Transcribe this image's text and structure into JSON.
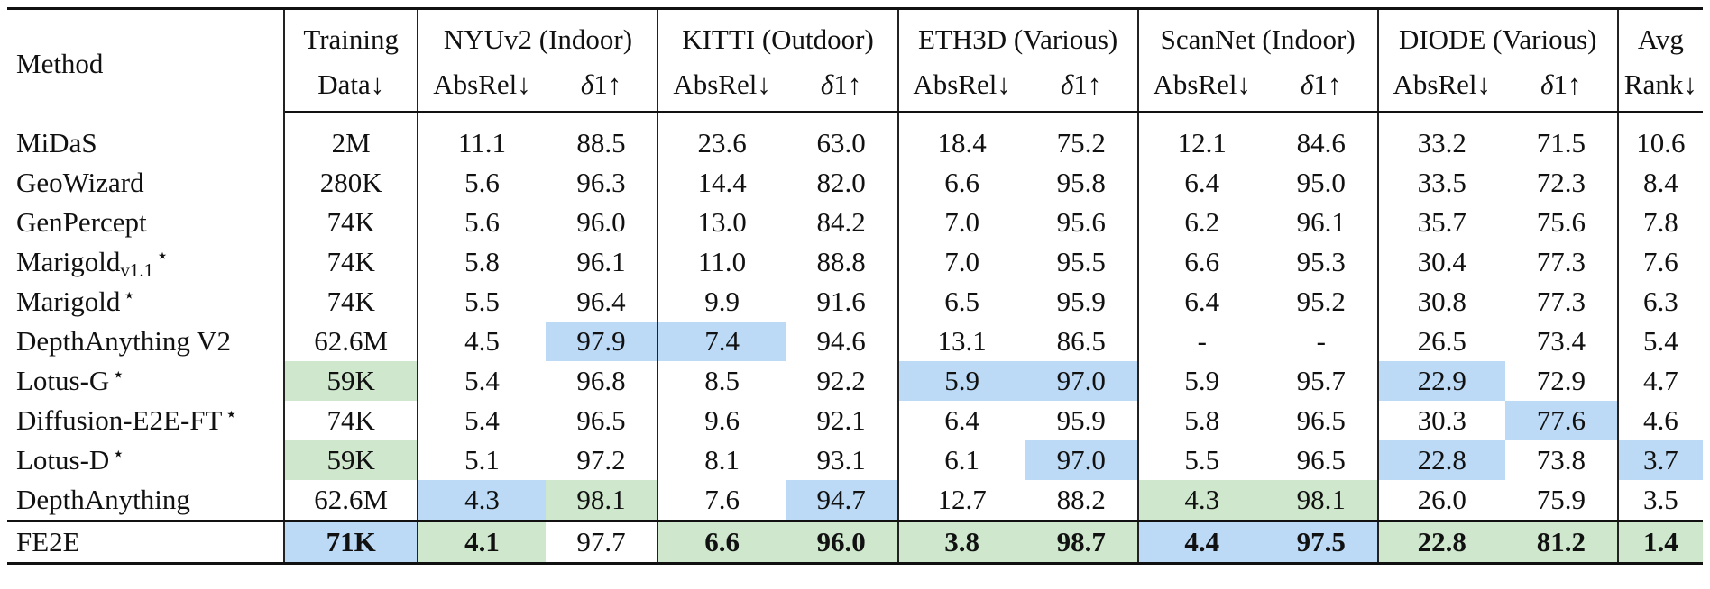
{
  "header": {
    "method": "Method",
    "training_line1": "Training",
    "training_line2": "Data↓",
    "datasets": [
      {
        "name": "NYUv2 (Indoor)"
      },
      {
        "name": "KITTI (Outdoor)"
      },
      {
        "name": "ETH3D (Various)"
      },
      {
        "name": "ScanNet (Indoor)"
      },
      {
        "name": "DIODE (Various)"
      }
    ],
    "absrel": "AbsRel↓",
    "delta_sym": "δ",
    "delta_rest": "1↑",
    "avg_line1": "Avg",
    "avg_line2": "Rank↓"
  },
  "rows": [
    {
      "name": "MiDaS",
      "sub": "",
      "star": "",
      "data": "2M",
      "vals": [
        "11.1",
        "88.5",
        "23.6",
        "63.0",
        "18.4",
        "75.2",
        "12.1",
        "84.6",
        "33.2",
        "71.5"
      ],
      "avg": "10.6"
    },
    {
      "name": "GeoWizard",
      "sub": "",
      "star": "",
      "data": "280K",
      "vals": [
        "5.6",
        "96.3",
        "14.4",
        "82.0",
        "6.6",
        "95.8",
        "6.4",
        "95.0",
        "33.5",
        "72.3"
      ],
      "avg": "8.4"
    },
    {
      "name": "GenPercept",
      "sub": "",
      "star": "",
      "data": "74K",
      "vals": [
        "5.6",
        "96.0",
        "13.0",
        "84.2",
        "7.0",
        "95.6",
        "6.2",
        "96.1",
        "35.7",
        "75.6"
      ],
      "avg": "7.8"
    },
    {
      "name": "Marigold",
      "sub": "v1.1",
      "star": "⋆",
      "data": "74K",
      "vals": [
        "5.8",
        "96.1",
        "11.0",
        "88.8",
        "7.0",
        "95.5",
        "6.6",
        "95.3",
        "30.4",
        "77.3"
      ],
      "avg": "7.6"
    },
    {
      "name": "Marigold",
      "sub": "",
      "star": "⋆",
      "data": "74K",
      "vals": [
        "5.5",
        "96.4",
        "9.9",
        "91.6",
        "6.5",
        "95.9",
        "6.4",
        "95.2",
        "30.8",
        "77.3"
      ],
      "avg": "6.3"
    },
    {
      "name": "DepthAnything V2",
      "sub": "",
      "star": "",
      "data": "62.6M",
      "vals": [
        "4.5",
        "97.9",
        "7.4",
        "94.6",
        "13.1",
        "86.5",
        "-",
        "-",
        "26.5",
        "73.4"
      ],
      "avg": "5.4"
    },
    {
      "name": "Lotus-G",
      "sub": "",
      "star": "⋆",
      "data": "59K",
      "vals": [
        "5.4",
        "96.8",
        "8.5",
        "92.2",
        "5.9",
        "97.0",
        "5.9",
        "95.7",
        "22.9",
        "72.9"
      ],
      "avg": "4.7"
    },
    {
      "name": "Diffusion-E2E-FT",
      "sub": "",
      "star": "⋆",
      "data": "74K",
      "vals": [
        "5.4",
        "96.5",
        "9.6",
        "92.1",
        "6.4",
        "95.9",
        "5.8",
        "96.5",
        "30.3",
        "77.6"
      ],
      "avg": "4.6"
    },
    {
      "name": "Lotus-D",
      "sub": "",
      "star": "⋆",
      "data": "59K",
      "vals": [
        "5.1",
        "97.2",
        "8.1",
        "93.1",
        "6.1",
        "97.0",
        "5.5",
        "96.5",
        "22.8",
        "73.8"
      ],
      "avg": "3.7"
    },
    {
      "name": "DepthAnything",
      "sub": "",
      "star": "",
      "data": "62.6M",
      "vals": [
        "4.3",
        "98.1",
        "7.6",
        "94.7",
        "12.7",
        "88.2",
        "4.3",
        "98.1",
        "26.0",
        "75.9"
      ],
      "avg": "3.5"
    },
    {
      "name": "FE2E",
      "sub": "",
      "star": "",
      "data": "71K",
      "vals": [
        "4.1",
        "97.7",
        "6.6",
        "96.0",
        "3.8",
        "98.7",
        "4.4",
        "97.5",
        "22.8",
        "81.2"
      ],
      "avg": "1.4"
    }
  ],
  "highlight_colors": {
    "blue": "#bcdaf6",
    "green": "#cfe8cd"
  }
}
